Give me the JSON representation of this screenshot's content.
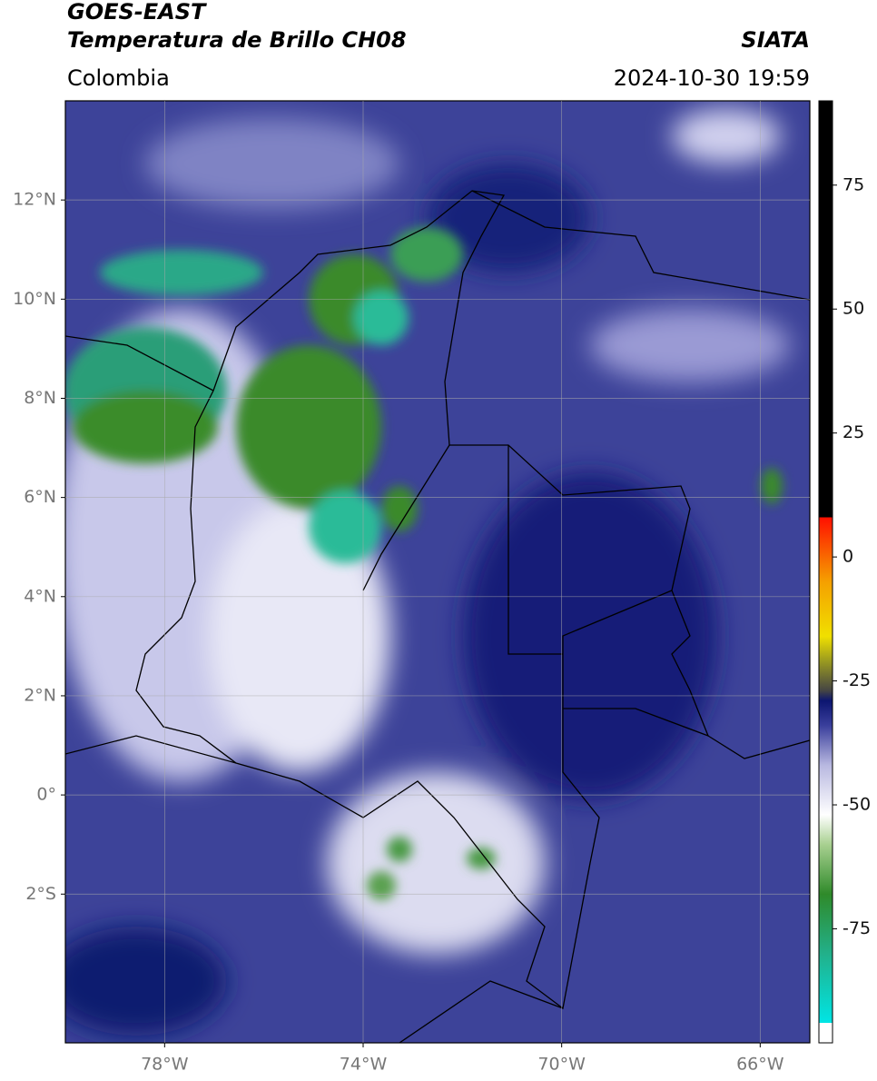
{
  "chart_data": {
    "type": "map",
    "title": "GOES-EAST",
    "subtitle": "Temperatura de Brillo CH08",
    "source": "SIATA",
    "region": "Colombia",
    "datetime": "2024-10-30 19:59",
    "xlim": [
      -80,
      -65
    ],
    "ylim": [
      -5,
      14
    ],
    "xticks": [
      {
        "value": -78,
        "label": "78°W"
      },
      {
        "value": -74,
        "label": "74°W"
      },
      {
        "value": -70,
        "label": "70°W"
      },
      {
        "value": -66,
        "label": "66°W"
      }
    ],
    "yticks": [
      {
        "value": 12,
        "label": "12°N"
      },
      {
        "value": 10,
        "label": "10°N"
      },
      {
        "value": 8,
        "label": "8°N"
      },
      {
        "value": 6,
        "label": "6°N"
      },
      {
        "value": 4,
        "label": "4°N"
      },
      {
        "value": 2,
        "label": "2°N"
      },
      {
        "value": 0,
        "label": "0°"
      },
      {
        "value": -2,
        "label": "2°S"
      }
    ],
    "grid": true,
    "clim": [
      -98,
      92
    ],
    "cticks": [
      75,
      50,
      25,
      0,
      -25,
      -50,
      -75
    ],
    "colormap": [
      {
        "value": -98,
        "color": "#ffffff"
      },
      {
        "value": -94,
        "color": "#ffffff"
      },
      {
        "value": -94,
        "color": "#00e5e5"
      },
      {
        "value": -80,
        "color": "#22b08a"
      },
      {
        "value": -68,
        "color": "#2f8a2a"
      },
      {
        "value": -58,
        "color": "#a8d090"
      },
      {
        "value": -52,
        "color": "#ffffff"
      },
      {
        "value": -42,
        "color": "#b8b8e0"
      },
      {
        "value": -34,
        "color": "#3a3f9c"
      },
      {
        "value": -29,
        "color": "#0c1570"
      },
      {
        "value": -27,
        "color": "#444444"
      },
      {
        "value": -21,
        "color": "#9a9a20"
      },
      {
        "value": -16,
        "color": "#f0e000"
      },
      {
        "value": -5,
        "color": "#f5a000"
      },
      {
        "value": 8,
        "color": "#ff1000"
      },
      {
        "value": 8,
        "color": "#000000"
      },
      {
        "value": 92,
        "color": "#000000"
      }
    ]
  }
}
